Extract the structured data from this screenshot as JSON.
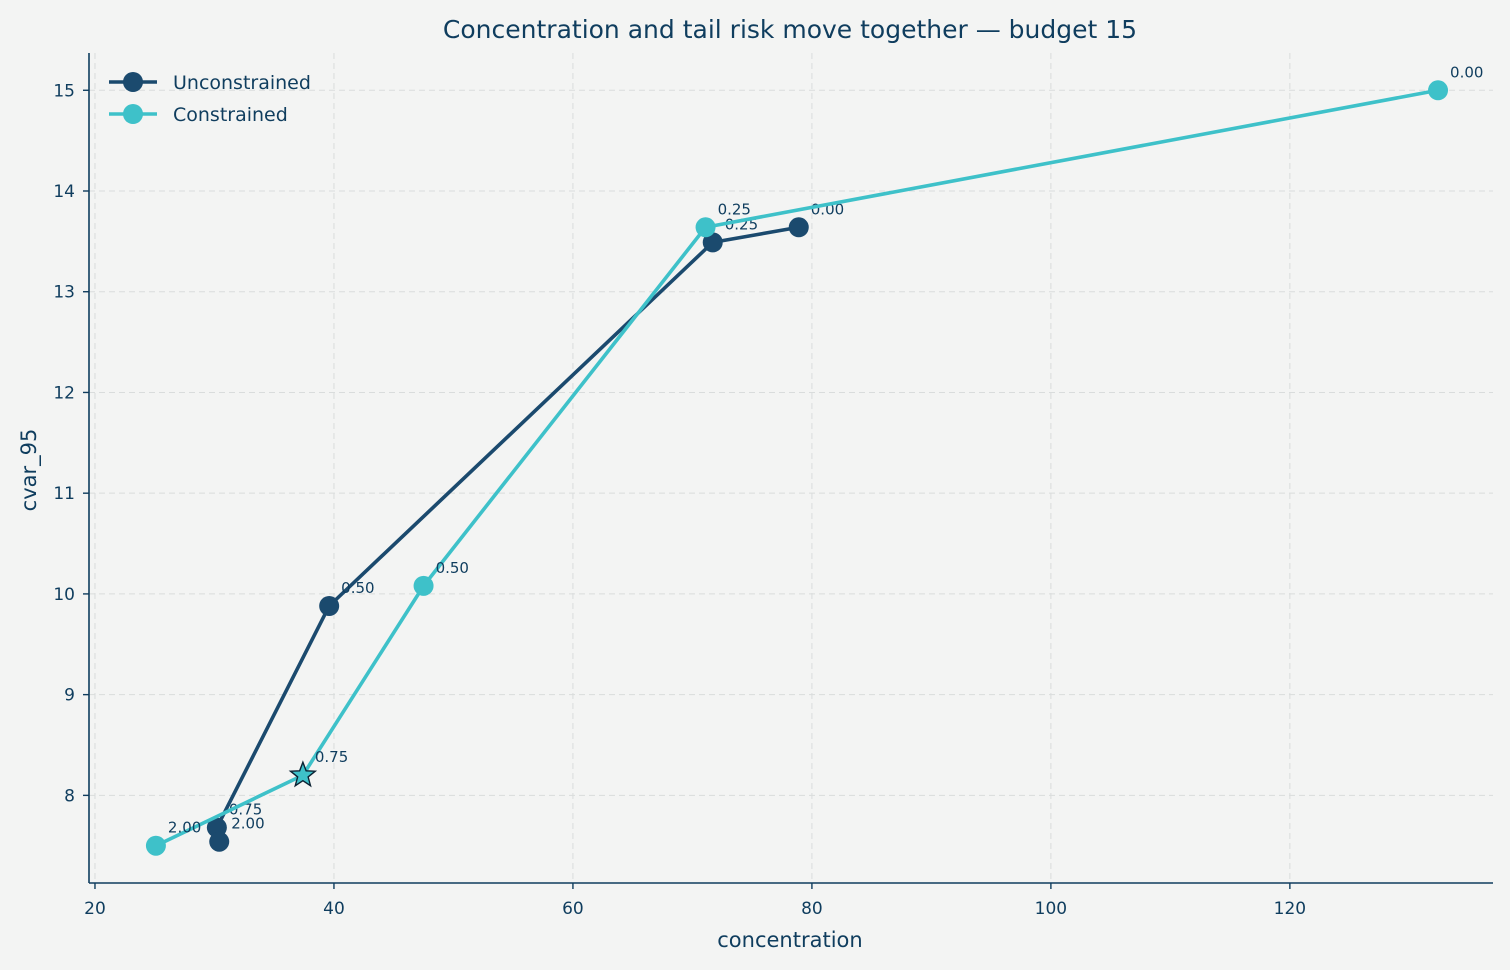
{
  "chart_data": {
    "type": "line",
    "title": "Concentration and tail risk move together — budget 15",
    "xlabel": "concentration",
    "ylabel": "cvar_95",
    "xlim": [
      19.5,
      137
    ],
    "ylim": [
      7.13,
      15.37
    ],
    "xticks": [
      20,
      40,
      60,
      80,
      100,
      120
    ],
    "yticks": [
      8,
      9,
      10,
      11,
      12,
      13,
      14,
      15
    ],
    "grid": true,
    "legend_position": "top-left",
    "series": [
      {
        "name": "Unconstrained",
        "color": "#1b4a6e",
        "points": [
          {
            "x": 78.9,
            "y": 13.64,
            "label": "0.00"
          },
          {
            "x": 71.7,
            "y": 13.49,
            "label": "0.25"
          },
          {
            "x": 39.6,
            "y": 9.88,
            "label": "0.50"
          },
          {
            "x": 30.2,
            "y": 7.68,
            "label": "0.75"
          },
          {
            "x": 30.4,
            "y": 7.54,
            "label": "2.00"
          }
        ]
      },
      {
        "name": "Constrained",
        "color": "#3ec1c9",
        "points": [
          {
            "x": 132.4,
            "y": 15.0,
            "label": "0.00"
          },
          {
            "x": 71.1,
            "y": 13.64,
            "label": "0.25"
          },
          {
            "x": 47.5,
            "y": 10.08,
            "label": "0.50"
          },
          {
            "x": 37.4,
            "y": 8.2,
            "label": "0.75",
            "marker": "star"
          },
          {
            "x": 25.1,
            "y": 7.5,
            "label": "2.00"
          }
        ]
      }
    ]
  }
}
